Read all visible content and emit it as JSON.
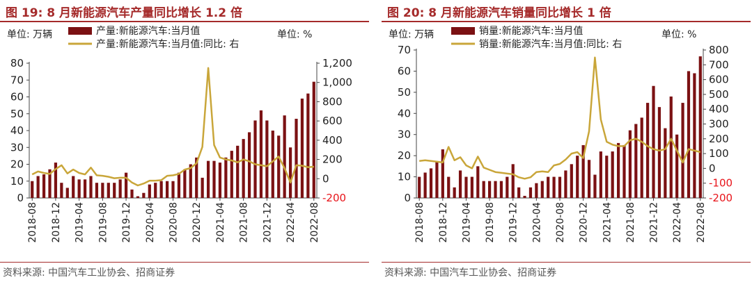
{
  "chart_data": [
    {
      "type": "bar+line",
      "title": "图 19:  8 月新能源汽车产量同比增长 1.2 倍",
      "left_unit": "单位:  万辆",
      "right_unit": "单位:  %",
      "legend": [
        "产量:新能源汽车:当月值",
        "产量:新能源汽车:当月值:同比:  右"
      ],
      "categories": [
        "2018-08",
        "2018-09",
        "2018-10",
        "2018-11",
        "2018-12",
        "2019-01",
        "2019-02",
        "2019-03",
        "2019-04",
        "2019-05",
        "2019-06",
        "2019-07",
        "2019-08",
        "2019-09",
        "2019-10",
        "2019-11",
        "2019-12",
        "2020-01",
        "2020-02",
        "2020-03",
        "2020-04",
        "2020-05",
        "2020-06",
        "2020-07",
        "2020-08",
        "2020-09",
        "2020-10",
        "2020-11",
        "2020-12",
        "2021-01",
        "2021-02",
        "2021-03",
        "2021-04",
        "2021-05",
        "2021-06",
        "2021-07",
        "2021-08",
        "2021-09",
        "2021-10",
        "2021-11",
        "2021-12",
        "2022-01",
        "2022-02",
        "2022-03",
        "2022-04",
        "2022-05",
        "2022-06",
        "2022-07",
        "2022-08"
      ],
      "tick_labels": [
        "2018-08",
        "2018-12",
        "2019-04",
        "2019-08",
        "2019-12",
        "2020-04",
        "2020-08",
        "2020-12",
        "2021-04",
        "2021-08",
        "2021-12",
        "2022-04",
        "2022-08"
      ],
      "series": [
        {
          "name": "产量:新能源汽车:当月值",
          "axis": "left",
          "color": "#7b1113",
          "values": [
            10,
            13,
            14,
            17,
            21,
            9,
            6,
            13,
            11,
            11,
            13,
            9,
            9,
            9,
            9,
            11,
            15,
            5,
            1,
            3,
            8,
            9,
            10,
            10,
            10,
            15,
            17,
            20,
            24,
            12,
            22,
            22,
            21,
            24,
            28,
            31,
            35,
            39,
            46,
            52,
            46,
            40,
            37,
            49,
            30,
            47,
            59,
            62,
            69
          ]
        },
        {
          "name": "产量:新能源汽车:当月值:同比:  右",
          "axis": "right",
          "color": "#c9a63a",
          "values": [
            45,
            75,
            60,
            50,
            100,
            140,
            55,
            95,
            60,
            45,
            115,
            35,
            30,
            20,
            5,
            10,
            10,
            -40,
            -70,
            -50,
            -20,
            -20,
            -15,
            30,
            35,
            50,
            95,
            110,
            160,
            330,
            1150,
            350,
            220,
            200,
            190,
            170,
            200,
            180,
            150,
            140,
            130,
            180,
            230,
            110,
            -40,
            140,
            135,
            120,
            125
          ]
        }
      ],
      "ylim_left": [
        0,
        80
      ],
      "yticks_left": [
        0,
        10,
        20,
        30,
        40,
        50,
        60,
        70,
        80
      ],
      "ylim_right": [
        -200,
        1200
      ],
      "yticks_right": [
        -200,
        0,
        200,
        400,
        600,
        800,
        1000,
        1200
      ],
      "ytick_labels_right": [
        "-200",
        "0",
        "200",
        "400",
        "600",
        "800",
        "1,000",
        "1,200"
      ],
      "source": "资料来源:  中国汽车工业协会、招商证券"
    },
    {
      "type": "bar+line",
      "title": "图 20:  8 月新能源汽车销量同比增长 1 倍",
      "left_unit": "单位:  万辆",
      "right_unit": "单位:  %",
      "legend": [
        "销量:新能源汽车:当月值",
        "销量:新能源汽车:当月值:同比:  右"
      ],
      "categories": [
        "2018-08",
        "2018-09",
        "2018-10",
        "2018-11",
        "2018-12",
        "2019-01",
        "2019-02",
        "2019-03",
        "2019-04",
        "2019-05",
        "2019-06",
        "2019-07",
        "2019-08",
        "2019-09",
        "2019-10",
        "2019-11",
        "2019-12",
        "2020-01",
        "2020-02",
        "2020-03",
        "2020-04",
        "2020-05",
        "2020-06",
        "2020-07",
        "2020-08",
        "2020-09",
        "2020-10",
        "2020-11",
        "2020-12",
        "2021-01",
        "2021-02",
        "2021-03",
        "2021-04",
        "2021-05",
        "2021-06",
        "2021-07",
        "2021-08",
        "2021-09",
        "2021-10",
        "2021-11",
        "2021-12",
        "2022-01",
        "2022-02",
        "2022-03",
        "2022-04",
        "2022-05",
        "2022-06",
        "2022-07",
        "2022-08"
      ],
      "tick_labels": [
        "2018-08",
        "2018-12",
        "2019-04",
        "2019-08",
        "2019-12",
        "2020-04",
        "2020-08",
        "2020-12",
        "2021-04",
        "2021-08",
        "2021-12",
        "2022-04",
        "2022-08"
      ],
      "series": [
        {
          "name": "销量:新能源汽车:当月值",
          "axis": "left",
          "color": "#7b1113",
          "values": [
            10,
            12,
            14,
            17,
            23,
            10,
            5,
            13,
            10,
            10,
            15,
            8,
            8,
            8,
            8,
            10,
            16,
            5,
            1,
            5,
            7,
            8,
            10,
            10,
            10,
            13,
            16,
            20,
            25,
            18,
            11,
            22,
            20,
            22,
            26,
            25,
            32,
            35,
            38,
            45,
            53,
            43,
            33,
            48,
            30,
            45,
            60,
            59,
            67
          ]
        },
        {
          "name": "销量:新能源汽车:当月值:同比:  右",
          "axis": "right",
          "color": "#c9a63a",
          "values": [
            50,
            55,
            50,
            45,
            40,
            145,
            55,
            75,
            20,
            0,
            80,
            5,
            -10,
            -25,
            -30,
            -35,
            -40,
            -60,
            -70,
            -60,
            -25,
            -20,
            -25,
            20,
            30,
            60,
            100,
            110,
            70,
            250,
            750,
            330,
            180,
            160,
            150,
            150,
            190,
            200,
            180,
            150,
            130,
            120,
            130,
            200,
            120,
            40,
            130,
            120,
            110
          ]
        }
      ],
      "ylim_left": [
        0,
        70
      ],
      "yticks_left": [
        0,
        10,
        20,
        30,
        40,
        50,
        60,
        70
      ],
      "ylim_right": [
        -200,
        800
      ],
      "yticks_right": [
        -200,
        -100,
        0,
        100,
        200,
        300,
        400,
        500,
        600,
        700,
        800
      ],
      "ytick_labels_right": [
        "-200",
        "-100",
        "0",
        "100",
        "200",
        "300",
        "400",
        "500",
        "600",
        "700",
        "800"
      ],
      "source": "资料来源:  中国汽车工业协会、招商证券"
    }
  ],
  "colors": {
    "accent": "#a52a2a",
    "bar": "#7b1113",
    "line": "#c9a63a",
    "right_axis_label": "#e8141a"
  }
}
